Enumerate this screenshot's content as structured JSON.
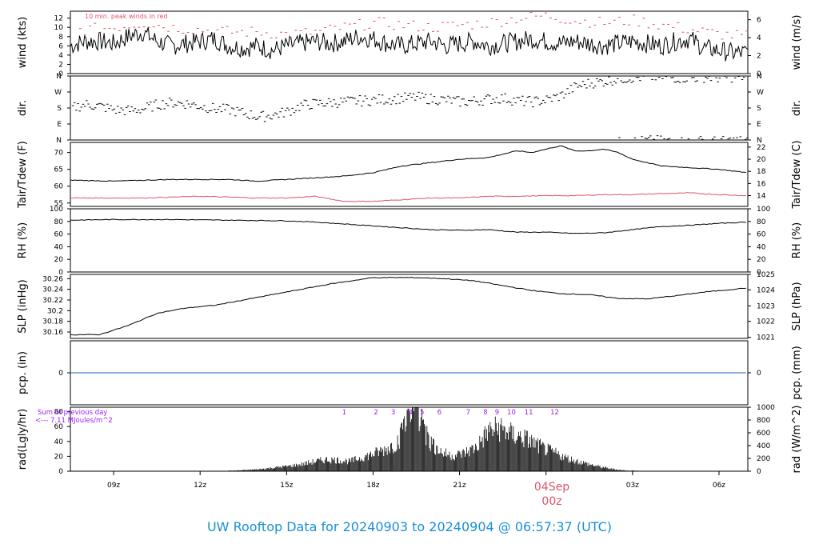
{
  "title": "UW Rooftop Data for 20240903  to  20240904 @ 06:57:37  (UTC)",
  "date_label": {
    "day": "04Sep",
    "hour": "00z"
  },
  "colors": {
    "title": "#1a8fd6",
    "red": "#df536b",
    "purple": "#a020f0",
    "blue": "#2060c0",
    "black": "#000000"
  },
  "chart_data": [
    {
      "type": "line",
      "id": "wind",
      "ylabel_left": "wind (kts)",
      "ylabel_right": "wind (m/s)",
      "ylim": [
        0,
        13.5
      ],
      "yticks_left": [
        0,
        2,
        4,
        6,
        8,
        10,
        12
      ],
      "yticks_right": [
        {
          "label": "0",
          "value": 0
        },
        {
          "label": "2",
          "value": 3.89
        },
        {
          "label": "4",
          "value": 7.78
        },
        {
          "label": "6",
          "value": 11.66
        }
      ],
      "annotation": "10 min. peak winds in red",
      "series": [
        {
          "color": "black",
          "x": [
            7.5,
            8,
            8.5,
            9,
            9.5,
            10,
            10.5,
            11,
            11.5,
            12,
            12.5,
            13,
            13.5,
            14,
            14.5,
            15,
            15.5,
            16,
            16.5,
            17,
            17.5,
            18,
            18.5,
            19,
            19.5,
            20,
            20.5,
            21,
            21.5,
            22,
            22.5,
            23,
            23.5,
            24,
            24.5,
            25,
            25.5,
            26,
            26.5,
            27,
            27.5,
            28,
            28.5,
            29,
            29.5,
            30,
            30.5,
            31
          ],
          "values": [
            6,
            7,
            7,
            6.5,
            8,
            9,
            7,
            6,
            6.5,
            7,
            7.5,
            6,
            5.5,
            6,
            5,
            6,
            6.5,
            7,
            6.5,
            7,
            8,
            7.5,
            6.5,
            6,
            6.5,
            7,
            6,
            6.5,
            7,
            6,
            6.5,
            7,
            7.5,
            7,
            6.5,
            7,
            6.5,
            6,
            6.5,
            7,
            6.5,
            6,
            7,
            7.5,
            5.5,
            5,
            4.5,
            4.5
          ]
        },
        {
          "color": "red",
          "x": [
            8,
            9,
            10,
            11,
            12,
            13,
            14,
            15,
            16,
            17,
            18,
            19,
            20,
            21,
            22,
            23,
            24,
            25,
            26,
            27,
            28,
            29,
            30,
            31
          ],
          "values": [
            9.5,
            10,
            11,
            10,
            9.5,
            9,
            9,
            8.5,
            9,
            10,
            11,
            10.5,
            10,
            10.5,
            11,
            12,
            12.5,
            11.5,
            11,
            11.5,
            10.5,
            9.5,
            8.5,
            8
          ]
        }
      ]
    },
    {
      "type": "scatter",
      "id": "dir",
      "ylabel_left": "dir.",
      "ylabel_right": "dir.",
      "ylim": [
        0,
        360
      ],
      "ytick_labels": [
        "N",
        "E",
        "S",
        "W",
        "N"
      ],
      "ytick_values": [
        0,
        90,
        180,
        270,
        360
      ],
      "series": [
        {
          "color": "black",
          "x": [
            7.5,
            8,
            8.5,
            9,
            9.5,
            10,
            10.5,
            11,
            11.5,
            12,
            12.5,
            13,
            13.5,
            14,
            14.5,
            15,
            15.5,
            16,
            16.5,
            17,
            17.5,
            18,
            18.5,
            19,
            19.5,
            20,
            20.5,
            21,
            21.5,
            22,
            22.5,
            23,
            23.5,
            24,
            24.5,
            25,
            25.5,
            26,
            26.5,
            27,
            27.5,
            28,
            28.5,
            29,
            29.5,
            30,
            30.5,
            31
          ],
          "values": [
            180,
            200,
            190,
            170,
            165,
            175,
            200,
            210,
            205,
            190,
            175,
            170,
            150,
            130,
            140,
            160,
            195,
            205,
            210,
            215,
            220,
            225,
            230,
            235,
            240,
            230,
            225,
            215,
            220,
            230,
            235,
            220,
            215,
            225,
            250,
            300,
            320,
            330,
            345,
            350,
            355,
            355,
            350,
            350,
            355,
            350,
            355,
            355
          ]
        }
      ]
    },
    {
      "type": "line",
      "id": "temp",
      "ylabel_left": "Tair/Tdew (F)",
      "ylabel_right": "Tair/Tdew (C)",
      "ylim": [
        54,
        73
      ],
      "yticks_left": [
        55,
        60,
        65,
        70
      ],
      "yticks_right": [
        {
          "label": "14",
          "value": 57.2
        },
        {
          "label": "16",
          "value": 60.8
        },
        {
          "label": "18",
          "value": 64.4
        },
        {
          "label": "20",
          "value": 68.0
        },
        {
          "label": "22",
          "value": 71.6
        }
      ],
      "series": [
        {
          "name": "Tair",
          "color": "black",
          "x": [
            7.5,
            9,
            11,
            13,
            14,
            15,
            16,
            17,
            18,
            19,
            20,
            21,
            22,
            22.5,
            23,
            23.5,
            24,
            24.5,
            25,
            25.5,
            26,
            26.5,
            27,
            28,
            29,
            30,
            31
          ],
          "values": [
            61.8,
            61.5,
            62,
            62,
            61.5,
            62,
            62.5,
            63,
            64,
            66,
            67,
            68,
            68.5,
            69.5,
            70.5,
            70,
            71,
            72,
            70.5,
            70.5,
            71,
            70,
            68,
            66,
            65.5,
            65,
            64
          ]
        },
        {
          "name": "Tdew",
          "color": "red",
          "x": [
            7.5,
            10,
            12,
            14,
            15,
            16,
            17,
            18,
            19,
            20,
            21,
            22,
            23,
            24,
            25,
            26,
            27,
            28,
            29,
            30,
            31
          ],
          "values": [
            56.5,
            56.5,
            57,
            56.5,
            56.5,
            57,
            55.5,
            55.5,
            56,
            56.5,
            56.5,
            57,
            57,
            57.2,
            57.2,
            57.5,
            57.5,
            57.8,
            58,
            57.5,
            57.2
          ]
        }
      ]
    },
    {
      "type": "line",
      "id": "rh",
      "ylabel_left": "RH (%)",
      "ylabel_right": "RH (%)",
      "ylim": [
        0,
        100
      ],
      "yticks_left": [
        0,
        20,
        40,
        60,
        80,
        100
      ],
      "yticks_right": [
        {
          "label": "0",
          "value": 0
        },
        {
          "label": "20",
          "value": 20
        },
        {
          "label": "40",
          "value": 40
        },
        {
          "label": "60",
          "value": 60
        },
        {
          "label": "80",
          "value": 80
        },
        {
          "label": "100",
          "value": 100
        }
      ],
      "series": [
        {
          "color": "black",
          "x": [
            7.5,
            9,
            11,
            13,
            15,
            16,
            17,
            18,
            19,
            20,
            21,
            22,
            23,
            24,
            25,
            26,
            27,
            28,
            29,
            30,
            31
          ],
          "values": [
            82,
            83,
            83,
            82,
            81,
            79,
            76,
            73,
            70,
            67,
            66,
            67,
            63,
            63,
            61,
            62,
            67,
            72,
            74,
            77,
            79
          ]
        }
      ]
    },
    {
      "type": "line",
      "id": "slp",
      "ylabel_left": "SLP (inHg)",
      "ylabel_right": "SLP (hPa)",
      "ylim": [
        30.148,
        30.268
      ],
      "yticks_left": [
        30.16,
        30.18,
        30.2,
        30.22,
        30.24,
        30.26
      ],
      "yticks_right": [
        {
          "label": "1021",
          "value": 30.15
        },
        {
          "label": "1022",
          "value": 30.18
        },
        {
          "label": "1023",
          "value": 30.209
        },
        {
          "label": "1024",
          "value": 30.239
        },
        {
          "label": "1025",
          "value": 30.268
        }
      ],
      "series": [
        {
          "color": "black",
          "x": [
            7.5,
            8.5,
            9.5,
            10.5,
            11.5,
            12.5,
            13.5,
            14.5,
            15.5,
            16.5,
            17.5,
            18,
            18.5,
            19.5,
            20.5,
            21.5,
            22.5,
            23.5,
            24.5,
            25.5,
            26.5,
            27.5,
            28.5,
            29.5,
            30.5,
            31
          ],
          "values": [
            30.155,
            30.155,
            30.172,
            30.195,
            30.205,
            30.21,
            30.22,
            30.23,
            30.24,
            30.25,
            30.258,
            30.262,
            30.262,
            30.262,
            30.26,
            30.256,
            30.247,
            30.238,
            30.232,
            30.23,
            30.223,
            30.222,
            30.228,
            30.235,
            30.24,
            30.243
          ]
        }
      ]
    },
    {
      "type": "line",
      "id": "pcp",
      "ylabel_left": "pcp. (in)",
      "ylabel_right": "pcp. (mm)",
      "ylim": [
        -1,
        1
      ],
      "yticks_left": [
        0
      ],
      "yticks_right": [
        {
          "label": "0",
          "value": 0
        }
      ],
      "series": [
        {
          "color": "blue",
          "x": [
            7.5,
            31
          ],
          "values": [
            0,
            0
          ]
        }
      ]
    },
    {
      "type": "bar",
      "id": "rad",
      "ylabel_left": "rad(Lgly/hr)",
      "ylabel_right": "rad (W/m^2)",
      "ylim": [
        0,
        86
      ],
      "yticks_left": [
        0,
        20,
        40,
        60,
        80
      ],
      "yticks_right": [
        {
          "label": "0",
          "value": 0
        },
        {
          "label": "200",
          "value": 17.2
        },
        {
          "label": "400",
          "value": 34.4
        },
        {
          "label": "600",
          "value": 51.6
        },
        {
          "label": "800",
          "value": 68.8
        },
        {
          "label": "1000",
          "value": 86
        }
      ],
      "annotation_lines": [
        "Sum of previous day",
        "<--- 7.11 MJoules/m^2"
      ],
      "hour_marks": [
        "1",
        "2",
        "3",
        "4",
        "5",
        "6",
        "7",
        "8",
        "9",
        "10",
        "11",
        "12"
      ],
      "hour_mark_x": [
        17.0,
        18.1,
        18.7,
        19.3,
        19.7,
        20.3,
        21.3,
        21.9,
        22.3,
        22.8,
        23.4,
        24.3
      ],
      "series": [
        {
          "color": "black",
          "x": [
            13.2,
            13.6,
            14,
            14.4,
            14.8,
            15.2,
            15.6,
            16,
            16.4,
            16.8,
            17.2,
            17.6,
            18,
            18.4,
            18.8,
            19.2,
            19.6,
            20,
            20.4,
            20.8,
            21.2,
            21.6,
            22,
            22.4,
            22.8,
            23.2,
            23.6,
            24,
            24.4,
            24.8,
            25.2,
            25.6,
            26,
            26.4,
            26.8
          ],
          "values": [
            1,
            2,
            3,
            5,
            7,
            9,
            12,
            16,
            19,
            18,
            16,
            22,
            28,
            35,
            45,
            80,
            85,
            45,
            30,
            25,
            30,
            40,
            65,
            70,
            60,
            55,
            45,
            35,
            28,
            20,
            15,
            10,
            6,
            3,
            1
          ]
        }
      ]
    }
  ],
  "x_axis": {
    "range": [
      7.5,
      31.0
    ],
    "ticks": [
      {
        "value": 9,
        "label": "09z"
      },
      {
        "value": 12,
        "label": "12z"
      },
      {
        "value": 15,
        "label": "15z"
      },
      {
        "value": 18,
        "label": "18z"
      },
      {
        "value": 21,
        "label": "21z"
      },
      {
        "value": 24,
        "label": ""
      },
      {
        "value": 27,
        "label": "03z"
      },
      {
        "value": 30,
        "label": "06z"
      }
    ]
  }
}
